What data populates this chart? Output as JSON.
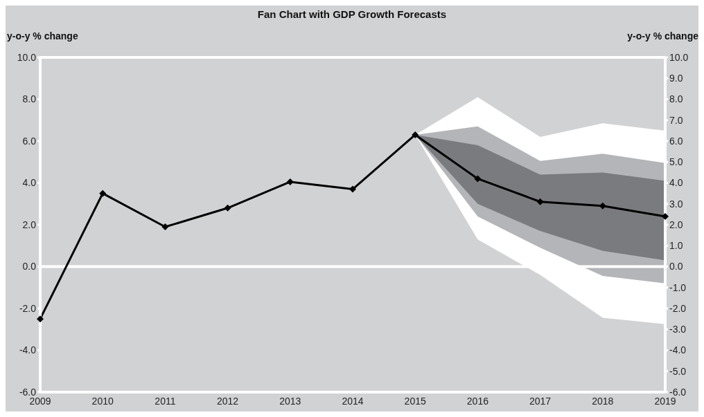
{
  "chart_data": {
    "type": "line",
    "title": "Fan Chart with GDP Growth Forecasts",
    "ylabel": "y-o-y % change",
    "y2label": "y-o-y % change",
    "categories": [
      "2009",
      "2010",
      "2011",
      "2012",
      "2013",
      "2014",
      "2015",
      "2016",
      "2017",
      "2018",
      "2019"
    ],
    "series": [
      {
        "type": "area",
        "color": "#ffffff",
        "values": [
          null,
          null,
          null,
          null,
          null,
          null,
          null,
          null,
          null,
          null,
          null
        ],
        "lower": [
          null,
          null,
          null,
          null,
          null,
          null,
          6.3,
          1.3,
          -0.4,
          -2.45,
          -2.75
        ],
        "upper": [
          null,
          null,
          null,
          null,
          null,
          null,
          6.3,
          8.1,
          6.2,
          6.85,
          6.5
        ]
      },
      {
        "type": "area",
        "color": "#b4b5b8",
        "values": [
          null,
          null,
          null,
          null,
          null,
          null,
          null,
          null,
          null,
          null,
          null
        ],
        "lower": [
          null,
          null,
          null,
          null,
          null,
          null,
          6.3,
          2.4,
          0.9,
          -0.45,
          -0.8
        ],
        "upper": [
          null,
          null,
          null,
          null,
          null,
          null,
          6.3,
          6.7,
          5.05,
          5.4,
          4.95
        ]
      },
      {
        "type": "area",
        "color": "#7a7b7f",
        "values": [
          null,
          null,
          null,
          null,
          null,
          null,
          null,
          null,
          null,
          null,
          null
        ],
        "lower": [
          null,
          null,
          null,
          null,
          null,
          null,
          6.3,
          3.0,
          1.7,
          0.75,
          0.3
        ],
        "upper": [
          null,
          null,
          null,
          null,
          null,
          null,
          6.3,
          5.8,
          4.4,
          4.5,
          4.1
        ]
      },
      {
        "color": "#000000",
        "marker": "diamond",
        "values": [
          -2.5,
          3.5,
          1.9,
          2.8,
          4.05,
          3.7,
          6.3,
          4.2,
          3.1,
          2.9,
          2.4
        ]
      }
    ],
    "ylim": [
      -6,
      10
    ],
    "yticks": [
      {
        "value": -6,
        "label": "-6.0"
      },
      {
        "value": -4,
        "label": "-4.0"
      },
      {
        "value": -2,
        "label": "-2.0"
      },
      {
        "value": 0,
        "label": "0.0"
      },
      {
        "value": 2,
        "label": "2.0"
      },
      {
        "value": 4,
        "label": "4.0"
      },
      {
        "value": 6,
        "label": "6.0"
      },
      {
        "value": 8,
        "label": "8.0"
      },
      {
        "value": 10,
        "label": "10.0"
      }
    ],
    "y2lim": [
      -6,
      10
    ],
    "y2ticks": [
      {
        "value": -6,
        "label": "-6.0"
      },
      {
        "value": -5,
        "label": "-5.0"
      },
      {
        "value": -4,
        "label": "-4.0"
      },
      {
        "value": -3,
        "label": "-3.0"
      },
      {
        "value": -2,
        "label": "-2.0"
      },
      {
        "value": -1,
        "label": "-1.0"
      },
      {
        "value": 0,
        "label": "0.0"
      },
      {
        "value": 1,
        "label": "1.0"
      },
      {
        "value": 2,
        "label": "2.0"
      },
      {
        "value": 3,
        "label": "3.0"
      },
      {
        "value": 4,
        "label": "4.0"
      },
      {
        "value": 5,
        "label": "5.0"
      },
      {
        "value": 6,
        "label": "6.0"
      },
      {
        "value": 7,
        "label": "7.0"
      },
      {
        "value": 8,
        "label": "8.0"
      },
      {
        "value": 9,
        "label": "9.0"
      },
      {
        "value": 10,
        "label": "10.0"
      }
    ],
    "ref_lines": [
      {
        "axis": "y",
        "value": 0,
        "color": "#ffffff"
      }
    ],
    "grid": false,
    "legend": false
  }
}
